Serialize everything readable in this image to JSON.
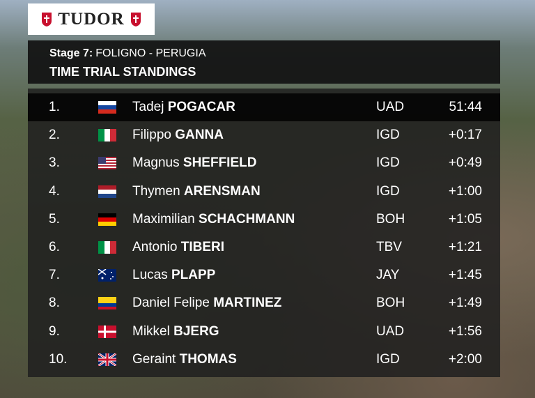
{
  "sponsor": "TUDOR",
  "header": {
    "stage_label": "Stage 7:",
    "route": "FOLIGNO - PERUGIA",
    "title": "TIME TRIAL STANDINGS"
  },
  "table": {
    "rows": [
      {
        "rank": "1.",
        "first_name": "Tadej",
        "last_name": "POGACAR",
        "team": "UAD",
        "time": "51:44"
      },
      {
        "rank": "2.",
        "first_name": "Filippo",
        "last_name": "GANNA",
        "team": "IGD",
        "time": "+0:17"
      },
      {
        "rank": "3.",
        "first_name": "Magnus",
        "last_name": "SHEFFIELD",
        "team": "IGD",
        "time": "+0:49"
      },
      {
        "rank": "4.",
        "first_name": "Thymen",
        "last_name": "ARENSMAN",
        "team": "IGD",
        "time": "+1:00"
      },
      {
        "rank": "5.",
        "first_name": "Maximilian",
        "last_name": "SCHACHMANN",
        "team": "BOH",
        "time": "+1:05"
      },
      {
        "rank": "6.",
        "first_name": "Antonio",
        "last_name": "TIBERI",
        "team": "TBV",
        "time": "+1:21"
      },
      {
        "rank": "7.",
        "first_name": "Lucas",
        "last_name": "PLAPP",
        "team": "JAY",
        "time": "+1:45"
      },
      {
        "rank": "8.",
        "first_name": "Daniel Felipe",
        "last_name": "MARTINEZ",
        "team": "BOH",
        "time": "+1:49"
      },
      {
        "rank": "9.",
        "first_name": "Mikkel",
        "last_name": "BJERG",
        "team": "UAD",
        "time": "+1:56"
      },
      {
        "rank": "10.",
        "first_name": "Geraint",
        "last_name": "THOMAS",
        "team": "IGD",
        "time": "+2:00"
      }
    ]
  }
}
